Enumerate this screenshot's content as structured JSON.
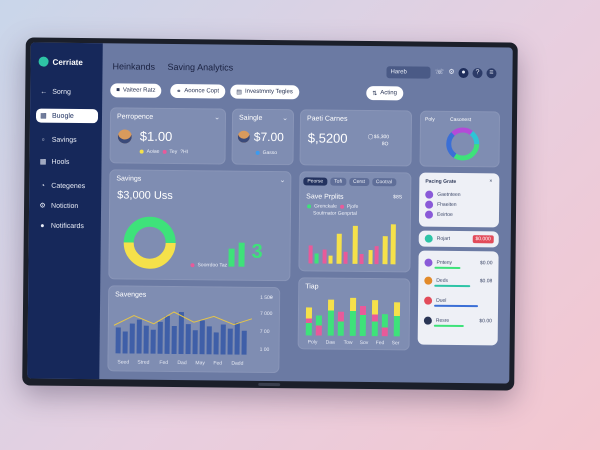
{
  "sidebar": {
    "brand": "Cerriate",
    "items": [
      {
        "label": "Sorng",
        "icon": "arrow-left-icon"
      },
      {
        "label": "Buogle",
        "icon": "document-icon",
        "active": true
      },
      {
        "label": "Savings",
        "icon": "folder-icon"
      },
      {
        "label": "Hools",
        "icon": "grid-icon"
      },
      {
        "label": "Categenes",
        "icon": "pie-icon"
      },
      {
        "label": "Notiction",
        "icon": "gear-icon"
      },
      {
        "label": "Notificards",
        "icon": "user-icon"
      }
    ]
  },
  "header": {
    "title_left": "Heinkands",
    "title_right": "Saving Analytics",
    "search_text": "Hareb"
  },
  "chips": [
    {
      "label": "Vaiteer Ratz",
      "icon": "lock-icon"
    },
    {
      "label": "Aoonce Copt",
      "icon": "link-icon"
    },
    {
      "label": "Investmnty Tegles",
      "icon": "calendar-icon"
    }
  ],
  "action_button": "Acting",
  "cards": {
    "performance": {
      "title": "Perropence",
      "value": "$1.00",
      "legend": [
        "Aoiae",
        "Tey",
        "?HI"
      ]
    },
    "savings_small": {
      "title": "Saingle",
      "value": "$7.00",
      "legend": [
        "Gasso"
      ]
    },
    "paid": {
      "title": "Paeti Carnes",
      "value": "$,5200",
      "side": "$5,300",
      "side2": "8O"
    },
    "ring": {
      "title": "Poly",
      "subtitle": "Casonest"
    },
    "savings_big": {
      "title": "Savings",
      "value": "$3,000 Uss",
      "label": "Soorrdoo Taz"
    },
    "save_profits": {
      "tabs": [
        "Peorse",
        "Tofi",
        "Cerst",
        "Cootral"
      ],
      "title": "Save Prplits",
      "side": "$8S",
      "legend": [
        "Grenckale",
        "Pjofe"
      ],
      "legend2": "Soutrnator Genprtal"
    },
    "savenges": {
      "title": "Savenges",
      "ticks": [
        "1 500",
        "7 000",
        "7 00",
        "1 00"
      ],
      "xlabels": [
        "Seed",
        "Stred",
        "Fed",
        "Dad",
        "May",
        "Fed",
        "Dadd"
      ]
    },
    "trap": {
      "title": "Tiap",
      "xlabels": [
        "Poly",
        "Daa",
        "Tow",
        "Sov",
        "Fed",
        "Ser"
      ]
    },
    "pacing": {
      "title": "Pacing Grate",
      "rows": [
        "Gaetnteen",
        "Fhaeiten",
        "Eeirtoe"
      ],
      "tag": "Rojart",
      "tag_btn": "$0.000"
    },
    "list": {
      "rows": [
        "Pnteny",
        "Deds",
        "Duel",
        "Resre"
      ],
      "values": [
        "$0.00",
        "$0.08",
        "",
        "$0.00"
      ]
    }
  },
  "colors": {
    "sidebar": "#16285a",
    "screen": "#6b7aa3",
    "card": "#7f8db2",
    "green": "#3ee27a",
    "yellow": "#f5e14a",
    "pink": "#e85a9a",
    "blue": "#3b6fd6",
    "teal": "#2ec4a6"
  }
}
